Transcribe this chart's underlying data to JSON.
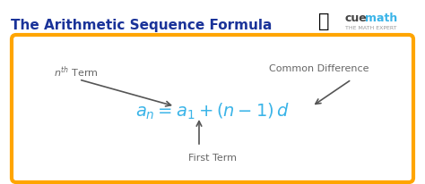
{
  "title": "The Arithmetic Sequence Formula",
  "title_color": "#1a3399",
  "title_fontsize": 11,
  "bg_color": "#ffffff",
  "box_edge_color": "#FFA500",
  "box_facecolor": "#ffffff",
  "formula": "$a_n = a_1 + (n - 1)\\,d$",
  "formula_color": "#3ab4e8",
  "formula_fontsize": 14,
  "label_nth": "$n^{th}$ Term",
  "label_first": "First Term",
  "label_common": "Common Difference",
  "label_color": "#666666",
  "label_fontsize": 8,
  "cue_color": "#444444",
  "math_color": "#3ab4e8",
  "subtext_color": "#999999",
  "arrow_color": "#555555"
}
